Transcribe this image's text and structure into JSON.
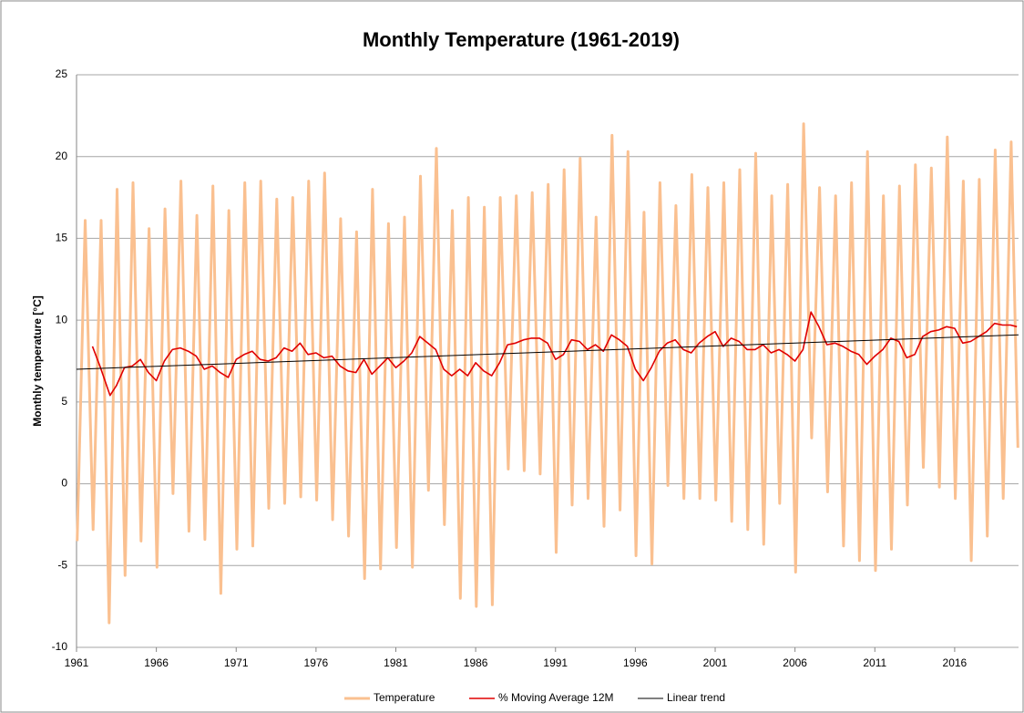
{
  "chart_data": {
    "type": "line",
    "title": "Monthly Temperature   (1961-2019)",
    "ylabel": "Monthly temperature [°C]",
    "xlim": [
      1961,
      2020
    ],
    "xticks": [
      1961,
      1966,
      1971,
      1976,
      1981,
      1986,
      1991,
      1996,
      2001,
      2006,
      2011,
      2016
    ],
    "ylim": [
      -10,
      25
    ],
    "yticks": [
      -10,
      -5,
      0,
      5,
      10,
      15,
      20,
      25
    ],
    "grid": true,
    "legend": "bottom",
    "series": [
      {
        "name": "Temperature",
        "color": "#fac090",
        "width": 3,
        "x": [
          1961.04,
          1961.54,
          1962.04,
          1962.54,
          1963.04,
          1963.54,
          1964.04,
          1964.54,
          1965.04,
          1965.54,
          1966.04,
          1966.54,
          1967.04,
          1967.54,
          1968.04,
          1968.54,
          1969.04,
          1969.54,
          1970.04,
          1970.54,
          1971.04,
          1971.54,
          1972.04,
          1972.54,
          1973.04,
          1973.54,
          1974.04,
          1974.54,
          1975.04,
          1975.54,
          1976.04,
          1976.54,
          1977.04,
          1977.54,
          1978.04,
          1978.54,
          1979.04,
          1979.54,
          1980.04,
          1980.54,
          1981.04,
          1981.54,
          1982.04,
          1982.54,
          1983.04,
          1983.54,
          1984.04,
          1984.54,
          1985.04,
          1985.54,
          1986.04,
          1986.54,
          1987.04,
          1987.54,
          1988.04,
          1988.54,
          1989.04,
          1989.54,
          1990.04,
          1990.54,
          1991.04,
          1991.54,
          1992.04,
          1992.54,
          1993.04,
          1993.54,
          1994.04,
          1994.54,
          1995.04,
          1995.54,
          1996.04,
          1996.54,
          1997.04,
          1997.54,
          1998.04,
          1998.54,
          1999.04,
          1999.54,
          2000.04,
          2000.54,
          2001.04,
          2001.54,
          2002.04,
          2002.54,
          2003.04,
          2003.54,
          2004.04,
          2004.54,
          2005.04,
          2005.54,
          2006.04,
          2006.54,
          2007.04,
          2007.54,
          2008.04,
          2008.54,
          2009.04,
          2009.54,
          2010.04,
          2010.54,
          2011.04,
          2011.54,
          2012.04,
          2012.54,
          2013.04,
          2013.54,
          2014.04,
          2014.54,
          2015.04,
          2015.54,
          2016.04,
          2016.54,
          2017.04,
          2017.54,
          2018.04,
          2018.54,
          2019.04,
          2019.54,
          2019.96
        ],
        "values": [
          -3.5,
          16.1,
          -2.8,
          16.1,
          -8.5,
          18.0,
          -5.6,
          18.4,
          -3.5,
          15.6,
          -5.1,
          16.8,
          -0.6,
          18.5,
          -2.9,
          16.4,
          -3.4,
          18.2,
          -6.7,
          16.7,
          -4.0,
          18.4,
          -3.8,
          18.5,
          -1.5,
          17.4,
          -1.2,
          17.5,
          -0.8,
          18.5,
          -1.0,
          19.0,
          -2.2,
          16.2,
          -3.2,
          15.4,
          -5.8,
          18.0,
          -5.2,
          15.9,
          -3.9,
          16.3,
          -5.1,
          18.8,
          -0.4,
          20.5,
          -2.5,
          16.7,
          -7.0,
          17.5,
          -7.5,
          16.9,
          -7.4,
          17.5,
          0.9,
          17.6,
          0.8,
          17.8,
          0.6,
          18.3,
          -4.2,
          19.2,
          -1.3,
          19.9,
          -0.9,
          16.3,
          -2.6,
          21.3,
          -1.6,
          20.3,
          -4.4,
          16.6,
          -4.9,
          18.4,
          -0.1,
          17.0,
          -0.9,
          18.9,
          -0.9,
          18.1,
          -1.0,
          18.4,
          -2.3,
          19.2,
          -2.8,
          20.2,
          -3.7,
          17.6,
          -1.2,
          18.3,
          -5.4,
          22.0,
          2.8,
          18.1,
          -0.5,
          17.6,
          -3.8,
          18.4,
          -4.7,
          20.3,
          -5.3,
          17.6,
          -4.0,
          18.2,
          -1.3,
          19.5,
          1.0,
          19.3,
          -0.2,
          21.2,
          -0.9,
          18.5,
          -4.7,
          18.6,
          -3.2,
          20.4,
          -0.9,
          20.9,
          2.2
        ]
      },
      {
        "name": "% Moving Average 12M",
        "color": "#e00000",
        "width": 1.6,
        "x": [
          1962.0,
          1962.5,
          1963.1,
          1963.5,
          1964.0,
          1964.5,
          1965.0,
          1965.5,
          1966.0,
          1966.5,
          1967.0,
          1967.5,
          1968.0,
          1968.5,
          1969.0,
          1969.5,
          1970.0,
          1970.5,
          1971.0,
          1971.5,
          1972.0,
          1972.5,
          1973.0,
          1973.5,
          1974.0,
          1974.5,
          1975.0,
          1975.5,
          1976.0,
          1976.5,
          1977.0,
          1977.5,
          1978.0,
          1978.5,
          1979.0,
          1979.5,
          1980.0,
          1980.5,
          1981.0,
          1981.5,
          1982.0,
          1982.5,
          1983.0,
          1983.5,
          1984.0,
          1984.5,
          1985.0,
          1985.5,
          1986.0,
          1986.5,
          1987.0,
          1987.5,
          1988.0,
          1988.5,
          1989.0,
          1989.5,
          1990.0,
          1990.5,
          1991.0,
          1991.5,
          1992.0,
          1992.5,
          1993.0,
          1993.5,
          1994.0,
          1994.5,
          1995.0,
          1995.5,
          1996.0,
          1996.5,
          1997.0,
          1997.5,
          1998.0,
          1998.5,
          1999.0,
          1999.5,
          2000.0,
          2000.5,
          2001.0,
          2001.5,
          2002.0,
          2002.5,
          2003.0,
          2003.5,
          2004.0,
          2004.5,
          2005.0,
          2005.5,
          2006.0,
          2006.5,
          2007.0,
          2007.5,
          2008.0,
          2008.5,
          2009.0,
          2009.5,
          2010.0,
          2010.5,
          2011.0,
          2011.5,
          2012.0,
          2012.5,
          2013.0,
          2013.5,
          2014.0,
          2014.5,
          2015.0,
          2015.5,
          2016.0,
          2016.5,
          2017.0,
          2017.5,
          2018.0,
          2018.5,
          2019.0,
          2019.5,
          2019.9
        ],
        "values": [
          8.4,
          7.1,
          5.4,
          6.0,
          7.1,
          7.2,
          7.6,
          6.8,
          6.3,
          7.5,
          8.2,
          8.3,
          8.1,
          7.8,
          7.0,
          7.2,
          6.8,
          6.5,
          7.6,
          7.9,
          8.1,
          7.6,
          7.5,
          7.7,
          8.3,
          8.1,
          8.6,
          7.9,
          8.0,
          7.7,
          7.8,
          7.2,
          6.9,
          6.8,
          7.6,
          6.7,
          7.2,
          7.7,
          7.1,
          7.5,
          8.0,
          9.0,
          8.6,
          8.2,
          7.0,
          6.6,
          7.0,
          6.6,
          7.4,
          6.9,
          6.6,
          7.4,
          8.5,
          8.6,
          8.8,
          8.9,
          8.9,
          8.6,
          7.6,
          7.9,
          8.8,
          8.7,
          8.2,
          8.5,
          8.1,
          9.1,
          8.8,
          8.4,
          7.0,
          6.3,
          7.1,
          8.1,
          8.6,
          8.8,
          8.2,
          8.0,
          8.6,
          9.0,
          9.3,
          8.4,
          8.9,
          8.7,
          8.2,
          8.2,
          8.5,
          8.0,
          8.2,
          7.9,
          7.5,
          8.2,
          10.5,
          9.6,
          8.5,
          8.6,
          8.4,
          8.1,
          7.9,
          7.3,
          7.8,
          8.2,
          8.9,
          8.7,
          7.7,
          7.9,
          9.0,
          9.3,
          9.4,
          9.6,
          9.5,
          8.6,
          8.7,
          9.0,
          9.3,
          9.8,
          9.7,
          9.7,
          9.6
        ]
      },
      {
        "name": "Linear trend",
        "color": "#000000",
        "width": 1,
        "x": [
          1961,
          2020
        ],
        "values": [
          7.0,
          9.1
        ]
      }
    ]
  }
}
